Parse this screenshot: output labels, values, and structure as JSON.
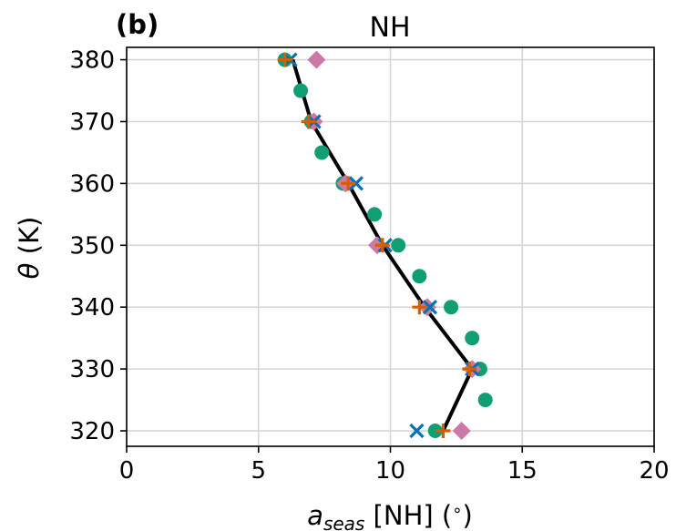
{
  "chart_data": {
    "type": "scatter",
    "panel_label": "(b)",
    "title": "NH",
    "xlabel": {
      "symbol": "a",
      "subscript": "seas",
      "suffix": " [NH] (",
      "degree": "∘",
      "close": ")"
    },
    "ylabel": {
      "symbol": "θ",
      "unit": " (K)"
    },
    "xlim": [
      0,
      20
    ],
    "ylim": [
      317.5,
      382
    ],
    "xticks": [
      0,
      5,
      10,
      15,
      20
    ],
    "yticks": [
      320,
      330,
      340,
      350,
      360,
      370,
      380
    ],
    "grid": true,
    "series": [
      {
        "marker": "circle",
        "color": "#129e73",
        "points": [
          [
            6.0,
            380
          ],
          [
            6.6,
            375
          ],
          [
            7.0,
            370
          ],
          [
            7.4,
            365
          ],
          [
            8.2,
            360
          ],
          [
            9.4,
            355
          ],
          [
            10.3,
            350
          ],
          [
            11.1,
            345
          ],
          [
            12.3,
            340
          ],
          [
            13.1,
            335
          ],
          [
            13.4,
            330
          ],
          [
            13.6,
            325
          ],
          [
            11.7,
            320
          ]
        ]
      },
      {
        "marker": "diamond",
        "color": "#cc79a7",
        "points": [
          [
            7.2,
            380
          ],
          [
            7.1,
            370
          ],
          [
            8.3,
            360
          ],
          [
            9.5,
            350
          ],
          [
            11.4,
            340
          ],
          [
            13.1,
            330
          ],
          [
            12.7,
            320
          ]
        ]
      },
      {
        "marker": "x",
        "color": "#0573b2",
        "points": [
          [
            6.2,
            380
          ],
          [
            7.1,
            370
          ],
          [
            8.7,
            360
          ],
          [
            9.8,
            350
          ],
          [
            11.5,
            340
          ],
          [
            13.1,
            330
          ],
          [
            11.0,
            320
          ]
        ]
      },
      {
        "marker": "plus",
        "color": "#d55e00",
        "points": [
          [
            6.0,
            380
          ],
          [
            6.9,
            370
          ],
          [
            8.4,
            360
          ],
          [
            9.7,
            350
          ],
          [
            11.1,
            340
          ],
          [
            13.0,
            330
          ],
          [
            12.0,
            320
          ]
        ]
      },
      {
        "marker": "line",
        "color": "#000000",
        "points": [
          [
            6.3,
            380
          ],
          [
            7.0,
            370
          ],
          [
            8.4,
            360
          ],
          [
            9.7,
            350
          ],
          [
            11.3,
            340
          ],
          [
            13.1,
            330
          ],
          [
            12.0,
            320
          ]
        ]
      }
    ]
  }
}
